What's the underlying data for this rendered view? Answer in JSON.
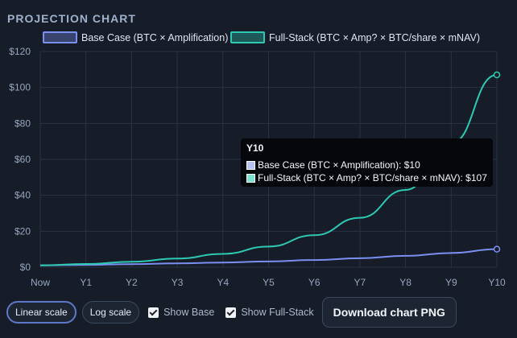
{
  "header": {
    "title": "PROJECTION CHART"
  },
  "chart_data": {
    "type": "line",
    "categories": [
      "Now",
      "Y1",
      "Y2",
      "Y3",
      "Y4",
      "Y5",
      "Y6",
      "Y7",
      "Y8",
      "Y9",
      "Y10"
    ],
    "series": [
      {
        "name": "Base Case (BTC × Amplification)",
        "color": "#7b8ff0",
        "values": [
          1.0,
          1.3,
          1.7,
          2.1,
          2.6,
          3.2,
          4.0,
          5.0,
          6.3,
          7.9,
          10
        ]
      },
      {
        "name": "Full-Stack (BTC × Amp? × BTC/share × mNAV)",
        "color": "#2ec9b3",
        "values": [
          1.0,
          1.8,
          3.0,
          4.8,
          7.4,
          11.5,
          17.8,
          27.5,
          43.0,
          69.0,
          107
        ]
      }
    ],
    "y_ticks": [
      "$0",
      "$20",
      "$40",
      "$60",
      "$80",
      "$100",
      "$120"
    ],
    "ylim": [
      0,
      120
    ],
    "y_scale": "linear",
    "grid": true,
    "legend_position": "top"
  },
  "tooltip": {
    "title": "Y10",
    "rows": [
      {
        "text": "Base Case (BTC × Amplification): $10",
        "swatch_color": "#b9c3f2"
      },
      {
        "text": "Full-Stack (BTC × Amp? × BTC/share × mNAV): $107",
        "swatch_color": "#7fe0d2"
      }
    ]
  },
  "controls": {
    "linear_label": "Linear scale",
    "log_label": "Log scale",
    "show_base_label": "Show Base",
    "show_full_label": "Show Full-Stack",
    "download_label": "Download chart PNG"
  }
}
